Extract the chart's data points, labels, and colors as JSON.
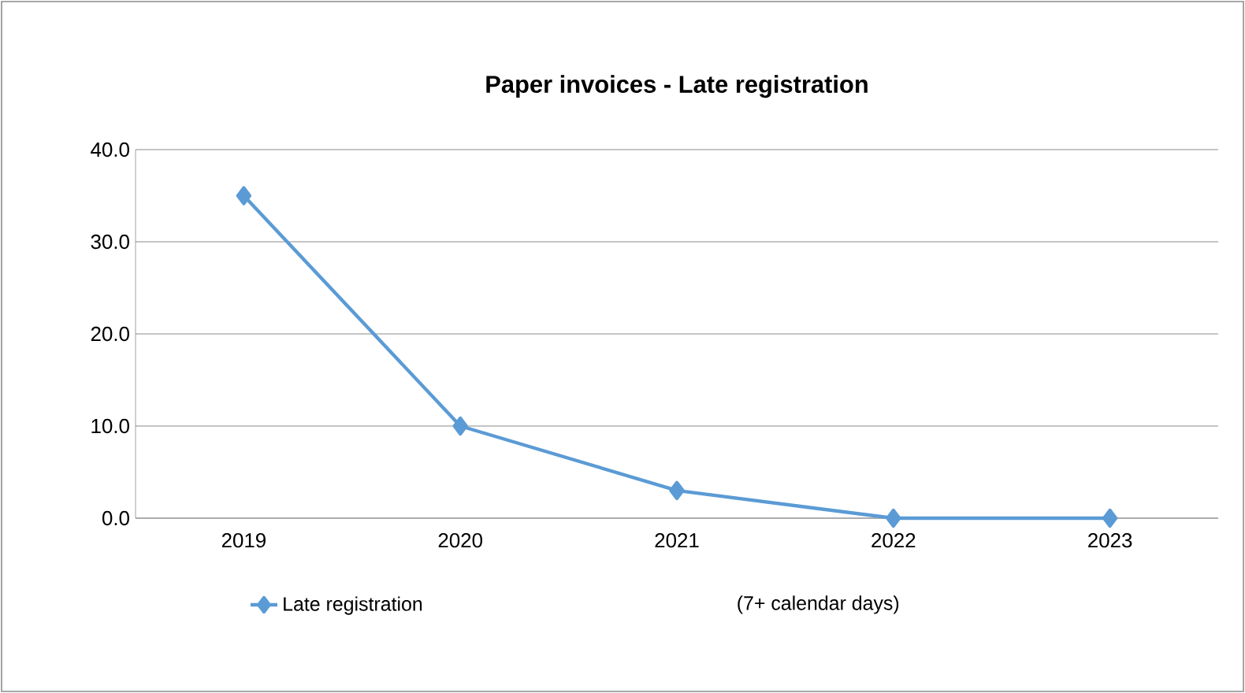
{
  "chart_data": {
    "type": "line",
    "title": "Paper invoices - Late registration",
    "categories": [
      "2019",
      "2020",
      "2021",
      "2022",
      "2023"
    ],
    "series": [
      {
        "name": "Late registration",
        "color": "#5b9bd5",
        "values": [
          35,
          10,
          3,
          0,
          0
        ]
      }
    ],
    "ylim": [
      0,
      40
    ],
    "yticks": [
      {
        "value": 0,
        "label": "0.0"
      },
      {
        "value": 10,
        "label": "10.0"
      },
      {
        "value": 20,
        "label": "20.0"
      },
      {
        "value": 30,
        "label": "30.0"
      },
      {
        "value": 40,
        "label": "40.0"
      }
    ],
    "grid": "y",
    "legend": "bottom",
    "marker": "diamond",
    "line_style": "solid",
    "annotations": [
      "(7+ calendar days)"
    ]
  }
}
